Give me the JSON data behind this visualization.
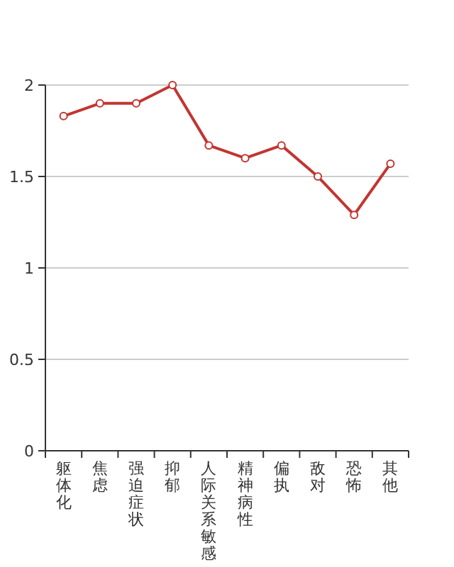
{
  "chart_data": {
    "type": "line",
    "categories": [
      "躯体化",
      "焦虑",
      "强迫症状",
      "抑郁",
      "人际关系敏感",
      "精神病性",
      "偏执",
      "敌对",
      "恐怖",
      "其他"
    ],
    "values": [
      1.83,
      1.9,
      1.9,
      2.0,
      1.67,
      1.6,
      1.67,
      1.5,
      1.29,
      1.57
    ],
    "color": "#c23531",
    "ylim": [
      0,
      2
    ],
    "yticks": [
      0,
      0.5,
      1,
      1.5,
      2
    ],
    "grid": "y",
    "marker": "circle",
    "line_style": "solid"
  }
}
